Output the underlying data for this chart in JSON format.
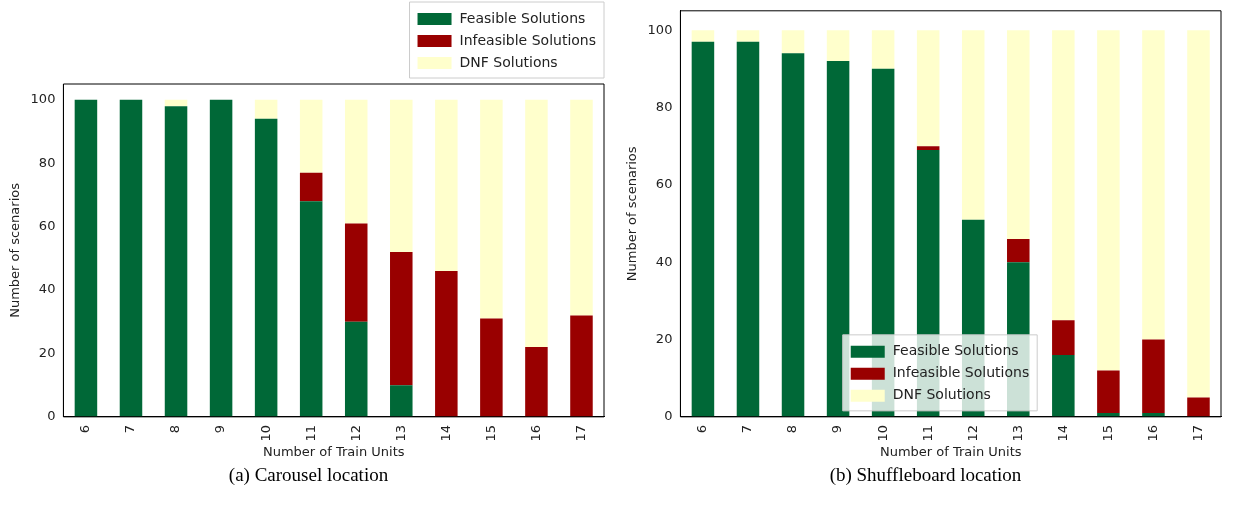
{
  "chart_data": [
    {
      "type": "bar",
      "stacked": true,
      "xlabel": "Number of Train Units",
      "ylabel": "Number of scenarios",
      "categories": [
        "6",
        "7",
        "8",
        "9",
        "10",
        "11",
        "12",
        "13",
        "14",
        "15",
        "16",
        "17"
      ],
      "ylim": [
        0,
        105
      ],
      "yticks": [
        0,
        20,
        40,
        60,
        80,
        100
      ],
      "legend": "top right",
      "annotations": [
        "(a) Carousel location"
      ],
      "series": [
        {
          "name": "Feasible Solutions",
          "color": "#006837",
          "values": [
            100,
            100,
            98,
            100,
            94,
            68,
            30,
            10,
            0,
            0,
            0,
            0
          ]
        },
        {
          "name": "Infeasible Solutions",
          "color": "#990000",
          "values": [
            0,
            0,
            0,
            0,
            0,
            9,
            31,
            42,
            46,
            31,
            22,
            32
          ]
        },
        {
          "name": "DNF Solutions",
          "color": "#ffffcc",
          "values": [
            0,
            0,
            2,
            0,
            6,
            23,
            39,
            48,
            54,
            69,
            78,
            68
          ]
        }
      ]
    },
    {
      "type": "bar",
      "stacked": true,
      "xlabel": "Number of Train Units",
      "ylabel": "Number of scenarios",
      "categories": [
        "6",
        "7",
        "8",
        "9",
        "10",
        "11",
        "12",
        "13",
        "14",
        "15",
        "16",
        "17"
      ],
      "ylim": [
        0,
        105
      ],
      "yticks": [
        0,
        20,
        40,
        60,
        80,
        100
      ],
      "legend": "bottom",
      "annotations": [
        "(b) Shuffleboard location"
      ],
      "series": [
        {
          "name": "Feasible Solutions",
          "color": "#006837",
          "values": [
            97,
            97,
            94,
            92,
            90,
            69,
            51,
            40,
            16,
            1,
            1,
            0
          ]
        },
        {
          "name": "Infeasible Solutions",
          "color": "#990000",
          "values": [
            0,
            0,
            0,
            0,
            0,
            1,
            0,
            6,
            9,
            11,
            19,
            5
          ]
        },
        {
          "name": "DNF Solutions",
          "color": "#ffffcc",
          "values": [
            3,
            3,
            6,
            8,
            10,
            30,
            49,
            54,
            75,
            88,
            80,
            95
          ]
        }
      ]
    }
  ]
}
